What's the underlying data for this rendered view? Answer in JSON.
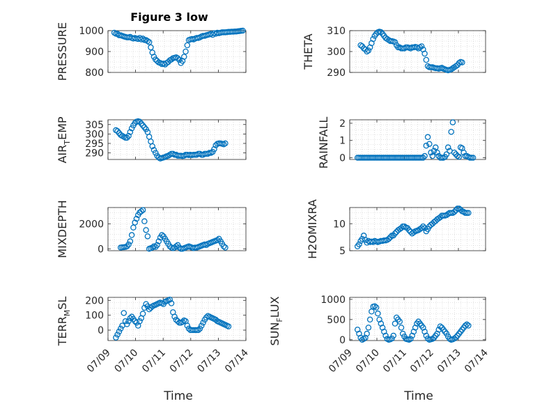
{
  "figure": {
    "title": "Figure 3 low",
    "marker_color": "#0072BD"
  },
  "chart_data": [
    {
      "type": "scatter",
      "ylabel": "PRESSURE",
      "ylim": [
        800,
        1000
      ],
      "yticks": [
        800,
        900,
        1000
      ],
      "ytick_labels": [
        "800",
        "900",
        "1000"
      ],
      "x_range": [
        0.5,
        4.85
      ],
      "x": [
        0.7,
        0.75,
        0.8,
        0.85,
        0.9,
        0.95,
        1.0,
        1.05,
        1.1,
        1.15,
        1.2,
        1.25,
        1.3,
        1.35,
        1.4,
        1.45,
        1.5,
        1.55,
        1.6,
        1.65,
        1.7,
        1.75,
        1.8,
        1.85,
        1.9,
        1.95,
        2.0,
        2.05,
        2.1,
        2.15,
        2.2,
        2.25,
        2.3,
        2.35,
        2.4,
        2.45,
        2.5,
        2.55,
        2.6,
        2.65,
        2.7,
        2.75,
        2.8,
        2.85,
        2.9,
        2.95,
        3.0,
        3.05,
        3.1,
        3.15,
        3.2,
        3.25,
        3.3,
        3.35,
        3.4,
        3.45,
        3.5,
        3.55,
        3.6,
        3.65,
        3.7,
        3.75,
        3.8,
        3.85,
        3.9,
        3.95,
        4.0,
        4.05,
        4.1,
        4.15,
        4.2,
        4.25,
        4.3,
        4.35,
        4.4,
        4.45,
        4.5,
        4.55,
        4.6,
        4.65,
        4.7,
        4.75
      ],
      "y": [
        990,
        985,
        985,
        978,
        978,
        975,
        972,
        970,
        968,
        968,
        970,
        965,
        962,
        965,
        962,
        960,
        965,
        958,
        962,
        955,
        955,
        950,
        945,
        920,
        895,
        875,
        862,
        855,
        848,
        845,
        840,
        842,
        838,
        845,
        850,
        858,
        862,
        868,
        870,
        872,
        868,
        860,
        845,
        855,
        875,
        900,
        930,
        955,
        958,
        960,
        958,
        962,
        965,
        965,
        968,
        972,
        975,
        975,
        978,
        980,
        982,
        985,
        980,
        988,
        985,
        990,
        988,
        990,
        992,
        992,
        992,
        993,
        994,
        994,
        995,
        995,
        996,
        996,
        997,
        998,
        999,
        1000
      ]
    },
    {
      "type": "scatter",
      "ylabel": "THETA",
      "ylim": [
        290,
        310
      ],
      "yticks": [
        290,
        300,
        310
      ],
      "ytick_labels": [
        "290",
        "300",
        "310"
      ],
      "x_range": [
        0.5,
        4.85
      ],
      "x": [
        0.85,
        0.9,
        0.95,
        1.0,
        1.05,
        1.1,
        1.15,
        1.2,
        1.25,
        1.3,
        1.35,
        1.4,
        1.45,
        1.5,
        1.55,
        1.6,
        1.65,
        1.7,
        1.75,
        1.8,
        1.85,
        1.9,
        1.95,
        2.0,
        2.05,
        2.1,
        2.15,
        2.2,
        2.25,
        2.3,
        2.35,
        2.4,
        2.45,
        2.5,
        2.55,
        2.6,
        2.65,
        2.7,
        2.75,
        2.8,
        2.85,
        2.9,
        2.95,
        3.0,
        3.05,
        3.1,
        3.15,
        3.2,
        3.25,
        3.3,
        3.35,
        3.4,
        3.45,
        3.5,
        3.55,
        3.6,
        3.65,
        3.7,
        3.75,
        3.8,
        3.85,
        3.9,
        3.95,
        4.0,
        4.05,
        4.1
      ],
      "y": [
        303,
        302.5,
        301.5,
        301,
        300,
        300.5,
        302,
        304,
        306,
        307.5,
        308.5,
        309.2,
        309.5,
        309.3,
        308.5,
        307.5,
        306.5,
        306,
        305.5,
        305,
        305,
        304.8,
        304.5,
        303,
        302,
        302,
        301.5,
        301.5,
        301.5,
        302,
        302,
        301.8,
        301.5,
        302,
        302,
        302.2,
        302,
        301.5,
        302,
        302.5,
        301,
        299,
        296,
        293,
        292.5,
        292.5,
        292.5,
        292.2,
        292,
        292,
        291.8,
        292,
        292.2,
        291.8,
        291.5,
        291.2,
        291,
        291.2,
        291.5,
        292,
        292.5,
        293,
        293.5,
        294.5,
        295,
        294.8
      ]
    },
    {
      "type": "scatter",
      "ylabel": "AIR_TEMP",
      "ylim": [
        286.5,
        307.5
      ],
      "yticks": [
        290,
        295,
        300,
        305
      ],
      "ytick_labels": [
        "290",
        "295",
        "300",
        "305"
      ],
      "x_range": [
        0.5,
        4.85
      ],
      "x": [
        0.75,
        0.8,
        0.85,
        0.9,
        0.95,
        1.0,
        1.05,
        1.1,
        1.15,
        1.2,
        1.25,
        1.3,
        1.35,
        1.4,
        1.45,
        1.5,
        1.55,
        1.6,
        1.65,
        1.7,
        1.75,
        1.8,
        1.85,
        1.9,
        1.95,
        2.0,
        2.05,
        2.1,
        2.15,
        2.2,
        2.25,
        2.3,
        2.35,
        2.4,
        2.45,
        2.5,
        2.55,
        2.6,
        2.65,
        2.7,
        2.75,
        2.8,
        2.85,
        2.9,
        2.95,
        3.0,
        3.05,
        3.1,
        3.15,
        3.2,
        3.25,
        3.3,
        3.35,
        3.4,
        3.45,
        3.5,
        3.55,
        3.6,
        3.65,
        3.7,
        3.75,
        3.8,
        3.85,
        3.9,
        3.95,
        4.0,
        4.05,
        4.1,
        4.15,
        4.2
      ],
      "y": [
        302,
        301.5,
        300.5,
        299.5,
        299,
        298.5,
        298,
        298,
        299,
        301,
        303,
        304.5,
        305.8,
        306.5,
        306.7,
        306.5,
        305.5,
        304.5,
        303.5,
        302.5,
        301,
        298.5,
        296,
        293.5,
        291.5,
        290,
        288.5,
        287.5,
        287,
        287.3,
        287.5,
        287.8,
        288.2,
        288.5,
        289,
        289.5,
        289.5,
        289,
        289,
        288.5,
        288.5,
        288.5,
        288.3,
        288.5,
        289,
        289,
        288.8,
        289,
        288.8,
        289,
        289,
        289,
        289.5,
        289.5,
        289,
        289,
        289.5,
        289.5,
        289.5,
        290,
        290,
        290.5,
        292,
        294,
        294.8,
        295,
        295,
        294.8,
        294.5,
        295
      ]
    },
    {
      "type": "scatter",
      "ylabel": "RAINFALL",
      "ylim": [
        -0.1,
        2.2
      ],
      "yticks": [
        0,
        1,
        2
      ],
      "ytick_labels": [
        "0",
        "1",
        "2"
      ],
      "x_range": [
        0.5,
        4.85
      ],
      "x": [
        0.75,
        0.8,
        0.85,
        0.9,
        0.95,
        1.0,
        1.05,
        1.1,
        1.15,
        1.2,
        1.25,
        1.3,
        1.35,
        1.4,
        1.45,
        1.5,
        1.55,
        1.6,
        1.65,
        1.7,
        1.75,
        1.8,
        1.85,
        1.9,
        1.95,
        2.0,
        2.05,
        2.1,
        2.15,
        2.2,
        2.25,
        2.3,
        2.35,
        2.4,
        2.45,
        2.5,
        2.55,
        2.6,
        2.65,
        2.7,
        2.75,
        2.8,
        2.85,
        2.9,
        2.95,
        3.0,
        3.05,
        3.1,
        3.15,
        3.2,
        3.25,
        3.3,
        3.35,
        3.4,
        3.45,
        3.5,
        3.55,
        3.6,
        3.65,
        3.7,
        3.75,
        3.8,
        3.85,
        3.9,
        3.95,
        4.0,
        4.05,
        4.1,
        4.15,
        4.2,
        4.25,
        4.3,
        4.35,
        4.4,
        4.45
      ],
      "y": [
        0,
        0,
        0,
        0,
        0,
        0,
        0,
        0,
        0,
        0,
        0,
        0,
        0,
        0,
        0,
        0,
        0,
        0,
        0,
        0,
        0,
        0,
        0,
        0,
        0,
        0,
        0,
        0,
        0,
        0,
        0,
        0,
        0,
        0,
        0,
        0,
        0,
        0,
        0,
        0,
        0,
        0,
        0,
        0.1,
        0.7,
        1.2,
        0.8,
        0.3,
        0.1,
        0.4,
        0.6,
        0.3,
        0.1,
        0,
        0,
        0,
        0.05,
        0.2,
        0.6,
        0.4,
        1.5,
        2.05,
        0.3,
        0.2,
        0.1,
        0.05,
        0.6,
        0.55,
        0.3,
        0.1,
        0.1,
        0.05,
        0,
        0,
        0
      ]
    },
    {
      "type": "scatter",
      "ylabel": "MIXDEPTH",
      "ylim": [
        -150,
        3300
      ],
      "yticks": [
        0,
        2000
      ],
      "ytick_labels": [
        "0",
        "2000"
      ],
      "x_range": [
        0.5,
        4.85
      ],
      "x": [
        0.9,
        0.95,
        1.0,
        1.05,
        1.1,
        1.15,
        1.2,
        1.25,
        1.3,
        1.35,
        1.4,
        1.45,
        1.5,
        1.55,
        1.6,
        1.65,
        1.7,
        1.75,
        1.8,
        1.85,
        1.9,
        1.95,
        2.0,
        2.05,
        2.1,
        2.15,
        2.2,
        2.25,
        2.3,
        2.35,
        2.4,
        2.45,
        2.5,
        2.55,
        2.6,
        2.65,
        2.7,
        2.75,
        2.8,
        2.85,
        2.9,
        2.95,
        3.0,
        3.05,
        3.1,
        3.15,
        3.2,
        3.25,
        3.3,
        3.35,
        3.4,
        3.45,
        3.5,
        3.55,
        3.6,
        3.65,
        3.7,
        3.75,
        3.8,
        3.85,
        3.9,
        3.95,
        4.0,
        4.05,
        4.1,
        4.15,
        4.2
      ],
      "y": [
        100,
        120,
        130,
        150,
        200,
        350,
        600,
        1100,
        1700,
        2100,
        2400,
        2700,
        2900,
        3000,
        3100,
        2200,
        1500,
        1000,
        0,
        50,
        100,
        200,
        150,
        300,
        600,
        900,
        1100,
        1000,
        800,
        600,
        400,
        200,
        100,
        50,
        100,
        200,
        300,
        100,
        0,
        0,
        50,
        100,
        150,
        200,
        150,
        100,
        50,
        100,
        100,
        150,
        200,
        250,
        300,
        350,
        300,
        400,
        450,
        500,
        550,
        600,
        650,
        700,
        800,
        600,
        400,
        200,
        100
      ]
    },
    {
      "type": "scatter",
      "ylabel": "H2OMIXRA",
      "ylim": [
        5,
        13
      ],
      "yticks": [
        5,
        10
      ],
      "ytick_labels": [
        "5",
        "10"
      ],
      "x_range": [
        0.5,
        4.85
      ],
      "x": [
        0.75,
        0.8,
        0.85,
        0.9,
        0.95,
        1.0,
        1.05,
        1.1,
        1.15,
        1.2,
        1.25,
        1.3,
        1.35,
        1.4,
        1.45,
        1.5,
        1.55,
        1.6,
        1.65,
        1.7,
        1.75,
        1.8,
        1.85,
        1.9,
        1.95,
        2.0,
        2.05,
        2.1,
        2.15,
        2.2,
        2.25,
        2.3,
        2.35,
        2.4,
        2.45,
        2.5,
        2.55,
        2.6,
        2.65,
        2.7,
        2.75,
        2.8,
        2.85,
        2.9,
        2.95,
        3.0,
        3.05,
        3.1,
        3.15,
        3.2,
        3.25,
        3.3,
        3.35,
        3.4,
        3.45,
        3.5,
        3.55,
        3.6,
        3.65,
        3.7,
        3.75,
        3.8,
        3.85,
        3.9,
        3.95,
        4.0,
        4.05,
        4.1,
        4.15,
        4.2,
        4.25,
        4.3
      ],
      "y": [
        5.8,
        6.2,
        6.8,
        7.2,
        7.8,
        7.0,
        6.5,
        6.8,
        6.6,
        6.7,
        6.6,
        6.8,
        6.7,
        6.6,
        6.7,
        6.8,
        6.8,
        6.9,
        6.9,
        7.0,
        7.2,
        7.5,
        7.8,
        7.8,
        8.2,
        8.5,
        8.8,
        9.0,
        9.2,
        9.5,
        9.5,
        9.3,
        9.2,
        8.8,
        8.5,
        8.2,
        8.4,
        8.6,
        8.7,
        8.8,
        9.0,
        9.2,
        9.5,
        9.2,
        8.6,
        9.0,
        9.5,
        9.8,
        10.0,
        10.3,
        10.5,
        10.8,
        11.0,
        11.2,
        11.5,
        11.5,
        11.5,
        11.6,
        11.8,
        12.0,
        12.0,
        12.0,
        12.2,
        12.5,
        12.8,
        12.8,
        12.6,
        12.3,
        12.2,
        12.0,
        12.0,
        12.0
      ]
    },
    {
      "type": "scatter",
      "ylabel": "TERR_MSL",
      "ylim": [
        -70,
        220
      ],
      "yticks": [
        0,
        100,
        200
      ],
      "ytick_labels": [
        "0",
        "100",
        "200"
      ],
      "x_range": [
        0.5,
        4.85
      ],
      "x": [
        0.75,
        0.8,
        0.85,
        0.9,
        0.95,
        1.0,
        1.05,
        1.1,
        1.15,
        1.2,
        1.25,
        1.3,
        1.35,
        1.4,
        1.45,
        1.5,
        1.55,
        1.6,
        1.65,
        1.7,
        1.75,
        1.8,
        1.85,
        1.9,
        1.95,
        2.0,
        2.05,
        2.1,
        2.15,
        2.2,
        2.25,
        2.3,
        2.35,
        2.4,
        2.45,
        2.5,
        2.55,
        2.6,
        2.65,
        2.7,
        2.75,
        2.8,
        2.85,
        2.9,
        2.95,
        3.0,
        3.05,
        3.1,
        3.15,
        3.2,
        3.25,
        3.3,
        3.35,
        3.4,
        3.45,
        3.5,
        3.55,
        3.6,
        3.65,
        3.7,
        3.75,
        3.8,
        3.85,
        3.9,
        3.95,
        4.0,
        4.05,
        4.1,
        4.15,
        4.2,
        4.25,
        4.3
      ],
      "y": [
        -50,
        -30,
        -10,
        10,
        30,
        115,
        60,
        40,
        60,
        80,
        90,
        75,
        60,
        50,
        30,
        60,
        80,
        110,
        150,
        175,
        160,
        140,
        150,
        160,
        165,
        170,
        175,
        180,
        185,
        180,
        175,
        190,
        195,
        200,
        205,
        180,
        120,
        90,
        70,
        60,
        50,
        50,
        55,
        65,
        60,
        30,
        10,
        0,
        0,
        0,
        0,
        0,
        0,
        10,
        30,
        50,
        70,
        85,
        95,
        90,
        85,
        80,
        75,
        70,
        60,
        55,
        50,
        45,
        40,
        35,
        30,
        25
      ]
    },
    {
      "type": "scatter",
      "ylabel": "SUN_FLUX",
      "ylim": [
        -20,
        1050
      ],
      "yticks": [
        0,
        500,
        1000
      ],
      "ytick_labels": [
        "0",
        "500",
        "1000"
      ],
      "x_range": [
        0.5,
        4.85
      ],
      "x": [
        0.75,
        0.8,
        0.85,
        0.9,
        0.95,
        1.0,
        1.05,
        1.1,
        1.15,
        1.2,
        1.25,
        1.3,
        1.35,
        1.4,
        1.45,
        1.5,
        1.55,
        1.6,
        1.65,
        1.7,
        1.75,
        1.8,
        1.85,
        1.9,
        1.95,
        2.0,
        2.05,
        2.1,
        2.15,
        2.2,
        2.25,
        2.3,
        2.35,
        2.4,
        2.45,
        2.5,
        2.55,
        2.6,
        2.65,
        2.7,
        2.75,
        2.8,
        2.85,
        2.9,
        2.95,
        3.0,
        3.05,
        3.1,
        3.15,
        3.2,
        3.25,
        3.3,
        3.35,
        3.4,
        3.45,
        3.5,
        3.55,
        3.6,
        3.65,
        3.7,
        3.75,
        3.8,
        3.85,
        3.9,
        3.95,
        4.0,
        4.05,
        4.1,
        4.15,
        4.2,
        4.25,
        4.3
      ],
      "y": [
        250,
        150,
        50,
        0,
        20,
        50,
        150,
        300,
        500,
        700,
        820,
        830,
        800,
        650,
        500,
        400,
        300,
        200,
        100,
        20,
        0,
        10,
        30,
        100,
        400,
        550,
        500,
        450,
        300,
        150,
        80,
        20,
        10,
        0,
        20,
        100,
        200,
        300,
        400,
        450,
        400,
        350,
        300,
        200,
        100,
        30,
        0,
        10,
        20,
        50,
        100,
        150,
        250,
        330,
        300,
        250,
        200,
        150,
        80,
        20,
        0,
        10,
        30,
        60,
        100,
        150,
        200,
        250,
        300,
        350,
        380,
        350
      ]
    }
  ],
  "x_axis": {
    "tick_labels": [
      "07/09",
      "07/10",
      "07/11",
      "07/12",
      "07/13",
      "07/14"
    ],
    "range": [
      "07/09",
      "07/14"
    ],
    "label_left": "Time",
    "label_right": "Time"
  }
}
